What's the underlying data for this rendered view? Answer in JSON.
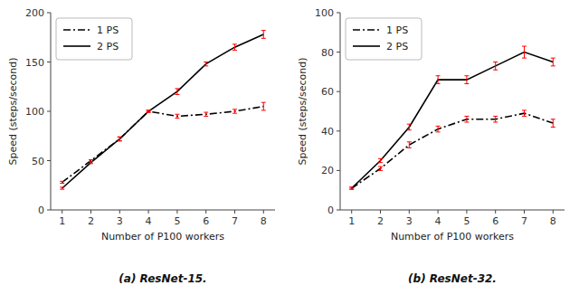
{
  "chart_data": [
    {
      "type": "line",
      "caption": "(a) ResNet-15.",
      "xlabel": "Number of P100 workers",
      "ylabel": "Speed (steps/second)",
      "x": [
        1,
        2,
        3,
        4,
        5,
        6,
        7,
        8
      ],
      "series": [
        {
          "name": "1 PS",
          "color": "black",
          "error_color": "red",
          "line_style": "dash-dot",
          "values": [
            28,
            50,
            72,
            100,
            95,
            97,
            100,
            105
          ],
          "errors": [
            1,
            1,
            2,
            1,
            2,
            2,
            2,
            4
          ]
        },
        {
          "name": "2 PS",
          "color": "black",
          "error_color": "red",
          "line_style": "solid",
          "values": [
            22,
            48,
            72,
            100,
            120,
            148,
            165,
            178
          ],
          "errors": [
            1,
            1,
            2,
            1,
            3,
            2,
            3,
            4
          ]
        }
      ],
      "xlim": [
        0.6,
        8.4
      ],
      "xticks": [
        1,
        2,
        3,
        4,
        5,
        6,
        7,
        8
      ],
      "ylim": [
        0,
        200
      ],
      "yticks": [
        0,
        50,
        100,
        150,
        200
      ],
      "grid": false,
      "legend": "upper left"
    },
    {
      "type": "line",
      "caption": "(b) ResNet-32.",
      "xlabel": "Number of P100 workers",
      "ylabel": "Speed (steps/second)",
      "x": [
        1,
        2,
        3,
        4,
        5,
        6,
        7,
        8
      ],
      "series": [
        {
          "name": "1 PS",
          "color": "black",
          "error_color": "red",
          "line_style": "dash-dot",
          "values": [
            11,
            21,
            33,
            41,
            46,
            46,
            49,
            44
          ],
          "errors": [
            0.5,
            1,
            1.5,
            1.5,
            1.5,
            1.5,
            1.5,
            2
          ]
        },
        {
          "name": "2 PS",
          "color": "black",
          "error_color": "red",
          "line_style": "solid",
          "values": [
            11,
            25,
            42,
            66,
            66,
            73,
            80,
            75
          ],
          "errors": [
            0.5,
            1,
            1.5,
            2,
            2,
            2,
            3,
            2
          ]
        }
      ],
      "xlim": [
        0.6,
        8.4
      ],
      "xticks": [
        1,
        2,
        3,
        4,
        5,
        6,
        7,
        8
      ],
      "ylim": [
        0,
        100
      ],
      "yticks": [
        0,
        20,
        40,
        60,
        80,
        100
      ],
      "grid": false,
      "legend": "upper left"
    }
  ]
}
